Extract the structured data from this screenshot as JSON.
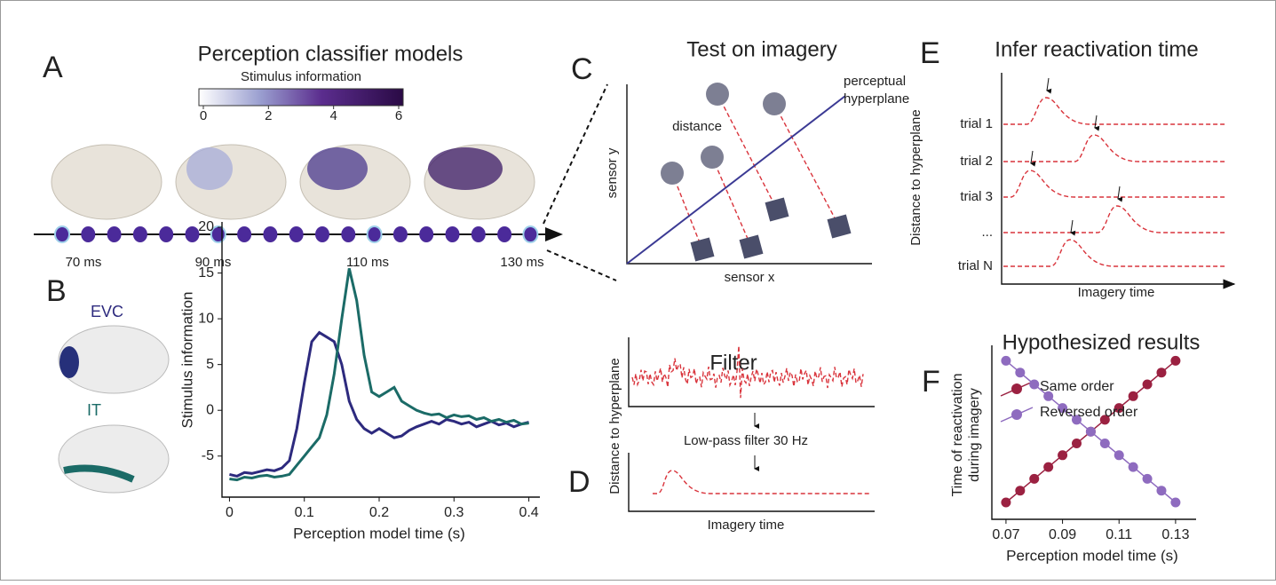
{
  "panels": {
    "A": {
      "letter": "A",
      "title": "Perception classifier models",
      "colorbar": {
        "label": "Stimulus information",
        "lim": [
          0,
          6
        ],
        "ticks": [
          0,
          2,
          4,
          6
        ]
      },
      "time_labels": [
        "70 ms",
        "90 ms",
        "110 ms",
        "130 ms"
      ]
    },
    "B": {
      "letter": "B"
    },
    "C": {
      "letter": "C",
      "title": "Test on imagery",
      "xlabel": "sensor x",
      "ylabel": "sensor y",
      "distance": "distance",
      "hyperplane_lines": [
        "perceptual",
        "hyperplane"
      ]
    },
    "D": {
      "letter": "D",
      "title": "Filter",
      "ylabel": "Distance to hyperplane",
      "filter": "Low-pass filter 30 Hz",
      "xlabel": "Imagery time"
    },
    "E": {
      "letter": "E",
      "title": "Infer reactivation time",
      "ylabel": "Distance to hyperplane",
      "xlabel": "Imagery time",
      "trials": [
        "trial 1",
        "trial 2",
        "trial 3",
        "...",
        "trial N"
      ]
    },
    "F": {
      "letter": "F"
    }
  },
  "chart_data": [
    {
      "type": "line",
      "xlabel": "Perception model time (s)",
      "ylabel": "Stimulus information",
      "x": [
        0,
        0.01,
        0.02,
        0.03,
        0.04,
        0.05,
        0.06,
        0.07,
        0.08,
        0.09,
        0.1,
        0.11,
        0.12,
        0.13,
        0.14,
        0.15,
        0.16,
        0.17,
        0.18,
        0.19,
        0.2,
        0.21,
        0.22,
        0.23,
        0.24,
        0.25,
        0.26,
        0.27,
        0.28,
        0.29,
        0.3,
        0.31,
        0.32,
        0.33,
        0.34,
        0.35,
        0.36,
        0.37,
        0.38,
        0.39,
        0.4
      ],
      "series": [
        {
          "name": "EVC",
          "color": "#2d2a7e",
          "values": [
            -7,
            -7.2,
            -6.8,
            -6.9,
            -6.7,
            -6.5,
            -6.6,
            -6.3,
            -5.5,
            -2,
            3,
            7.5,
            8.5,
            8,
            7.5,
            5,
            1,
            -1,
            -2,
            -2.5,
            -2,
            -2.5,
            -3,
            -2.8,
            -2.2,
            -1.8,
            -1.5,
            -1.2,
            -1.5,
            -1,
            -1.2,
            -1.5,
            -1.3,
            -1.8,
            -1.5,
            -1.2,
            -1.6,
            -1.4,
            -1.8,
            -1.5,
            -1.3
          ]
        },
        {
          "name": "IT",
          "color": "#1b6b67",
          "values": [
            -7.5,
            -7.6,
            -7.3,
            -7.4,
            -7.2,
            -7.1,
            -7.3,
            -7.2,
            -7,
            -6,
            -5,
            -4,
            -3,
            -0.5,
            4,
            10,
            15.5,
            12,
            6,
            2,
            1.5,
            2,
            2.5,
            1,
            0.5,
            0,
            -0.3,
            -0.5,
            -0.4,
            -0.8,
            -0.5,
            -0.7,
            -0.6,
            -1,
            -0.8,
            -1.2,
            -1,
            -1.3,
            -1.1,
            -1.5,
            -1.4
          ]
        }
      ],
      "xlim": [
        -0.01,
        0.41
      ],
      "xticks": [
        0,
        0.1,
        0.2,
        0.3,
        0.4
      ],
      "ylim": [
        -9,
        20
      ],
      "yticks": [
        -5,
        0,
        5,
        10,
        15,
        20
      ]
    },
    {
      "type": "line",
      "title": "Hypothesized results",
      "xlabel": "Perception model time (s)",
      "ylabel_lines": [
        "Time of reactivation",
        "during imagery"
      ],
      "x": [
        0.07,
        0.075,
        0.08,
        0.085,
        0.09,
        0.095,
        0.1,
        0.105,
        0.11,
        0.115,
        0.12,
        0.125,
        0.13
      ],
      "series": [
        {
          "name": "Same order",
          "color": "#9b2141",
          "values": [
            0.1,
            0.17,
            0.24,
            0.31,
            0.38,
            0.45,
            0.52,
            0.59,
            0.66,
            0.73,
            0.8,
            0.87,
            0.94
          ]
        },
        {
          "name": "Reversed order",
          "color": "#8e6bbf",
          "values": [
            0.94,
            0.87,
            0.8,
            0.73,
            0.66,
            0.59,
            0.52,
            0.45,
            0.38,
            0.31,
            0.24,
            0.17,
            0.1
          ]
        }
      ],
      "xlim": [
        0.065,
        0.136
      ],
      "xticks": [
        0.07,
        0.09,
        0.11,
        0.13
      ],
      "ylim": [
        0,
        1
      ],
      "legend": "upper left",
      "markers": true
    }
  ]
}
